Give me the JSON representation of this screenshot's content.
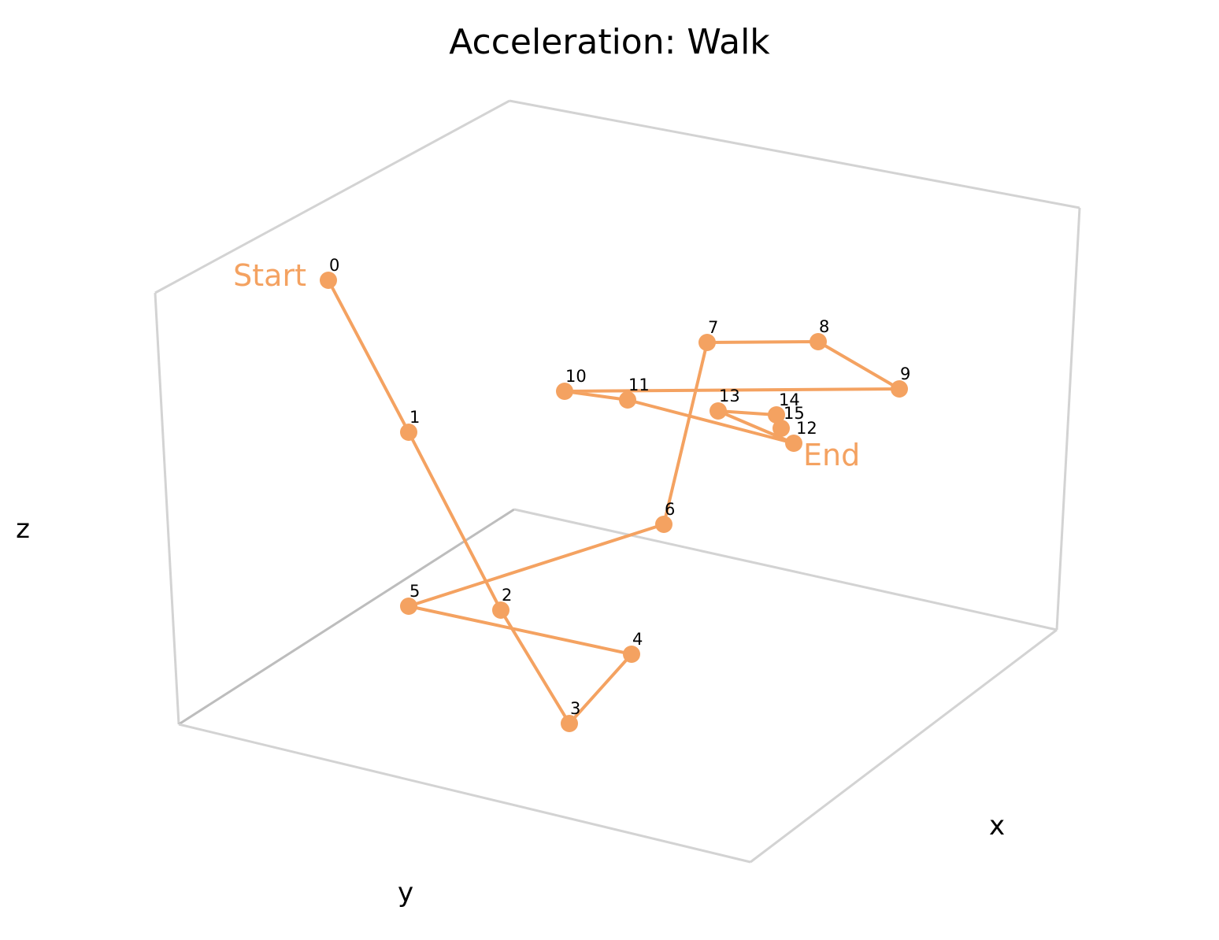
{
  "chart_data": {
    "type": "line",
    "title": "Acceleration: Walk",
    "xlabel": "x",
    "ylabel": "y",
    "zlabel": "z",
    "series": [
      {
        "start_label": "Start",
        "end_label": "End",
        "color": "#f4a261",
        "point_labels": [
          "0",
          "1",
          "2",
          "3",
          "4",
          "5",
          "6",
          "7",
          "8",
          "9",
          "10",
          "11",
          "12",
          "13",
          "14",
          "15"
        ]
      }
    ],
    "grid": false
  }
}
